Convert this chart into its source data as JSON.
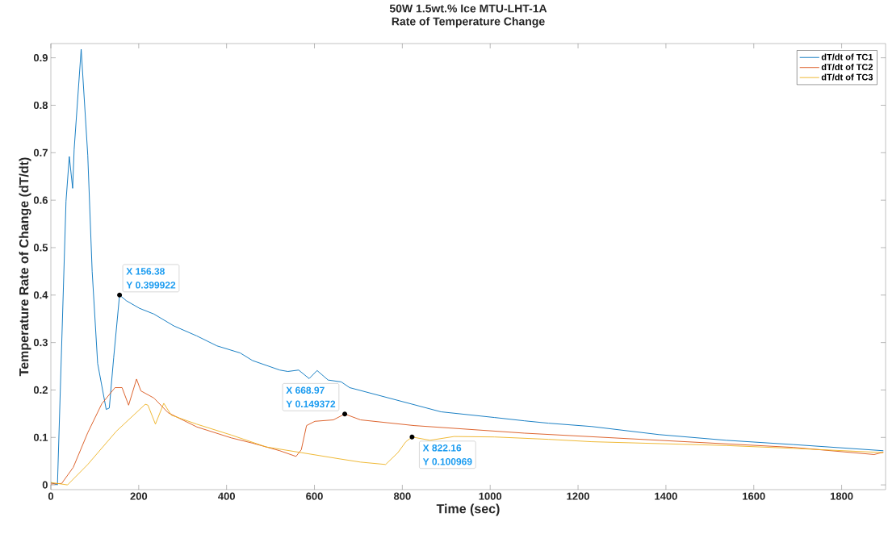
{
  "chart_data": {
    "type": "line",
    "title": "50W 1.5wt.% Ice MTU-LHT-1A",
    "subtitle": "Rate of Temperature Change",
    "xlabel": "Time (sec)",
    "ylabel": "Temperature Rate of Change (dT/dt)",
    "xlim": [
      0,
      1900
    ],
    "ylim": [
      -0.01,
      0.93
    ],
    "xticks": [
      0,
      200,
      400,
      600,
      800,
      1000,
      1200,
      1400,
      1600,
      1800
    ],
    "yticks": [
      0,
      0.1,
      0.2,
      0.3,
      0.4,
      0.5,
      0.6,
      0.7,
      0.8,
      0.9
    ],
    "legend": "top right",
    "series": [
      {
        "name": "dT/dt of TC1",
        "color": "#0072bd",
        "x": [
          0,
          15,
          34.5,
          42,
          49.6,
          53,
          69,
          84,
          94,
          106.5,
          126,
          133,
          143,
          156.38,
          172,
          202,
          234.6,
          280,
          332,
          378,
          431,
          459,
          521,
          539.5,
          564,
          588,
          606,
          631,
          661,
          680,
          888,
          1010,
          1078,
          1133,
          1231,
          1384,
          1537,
          1690,
          1895
        ],
        "values": [
          0.005,
          0,
          0.598,
          0.692,
          0.625,
          0.707,
          0.918,
          0.695,
          0.45,
          0.256,
          0.159,
          0.162,
          0.268,
          0.399922,
          0.388,
          0.372,
          0.36,
          0.335,
          0.314,
          0.293,
          0.278,
          0.262,
          0.242,
          0.239,
          0.242,
          0.224,
          0.241,
          0.221,
          0.217,
          0.205,
          0.154,
          0.142,
          0.135,
          0.13,
          0.123,
          0.106,
          0.094,
          0.085,
          0.072
        ]
      },
      {
        "name": "dT/dt of TC2",
        "color": "#d95319",
        "x": [
          0,
          24.6,
          51,
          84,
          116,
          146,
          162,
          177,
          195,
          205,
          234.6,
          267,
          332.5,
          411,
          459,
          521,
          558,
          570,
          582,
          601,
          643,
          668.97,
          705,
          766,
          827,
          1078,
          1384,
          1690,
          1874,
          1895
        ],
        "values": [
          0.002,
          0.003,
          0.037,
          0.11,
          0.171,
          0.205,
          0.205,
          0.168,
          0.223,
          0.198,
          0.183,
          0.152,
          0.122,
          0.099,
          0.088,
          0.072,
          0.06,
          0.074,
          0.125,
          0.134,
          0.137,
          0.149372,
          0.137,
          0.131,
          0.125,
          0.109,
          0.094,
          0.079,
          0.064,
          0.069
        ]
      },
      {
        "name": "dT/dt of TC3",
        "color": "#edb120",
        "x": [
          0,
          38,
          84,
          149,
          215,
          221,
          238,
          257,
          274,
          332,
          411,
          490,
          570,
          656,
          705,
          762,
          790,
          808,
          822.16,
          863,
          918,
          1010,
          1133,
          1231,
          1537,
          1690,
          1895
        ],
        "values": [
          0.005,
          0,
          0.043,
          0.113,
          0.17,
          0.168,
          0.128,
          0.172,
          0.147,
          0.128,
          0.105,
          0.08,
          0.068,
          0.055,
          0.048,
          0.043,
          0.068,
          0.091,
          0.100969,
          0.094,
          0.102,
          0.101,
          0.096,
          0.091,
          0.083,
          0.077,
          0.068
        ]
      }
    ],
    "annotations": [
      {
        "text": "X 156.38",
        "x": 156.38,
        "y": 0.399922
      },
      {
        "text": "Y 0.399922",
        "x": 156.38,
        "y": 0.399922
      },
      {
        "text": "X 668.97",
        "x": 668.97,
        "y": 0.149372
      },
      {
        "text": "Y 0.149372",
        "x": 668.97,
        "y": 0.149372
      },
      {
        "text": "X 822.16",
        "x": 822.16,
        "y": 0.100969
      },
      {
        "text": "Y 0.100969",
        "x": 822.16,
        "y": 0.100969
      }
    ]
  }
}
